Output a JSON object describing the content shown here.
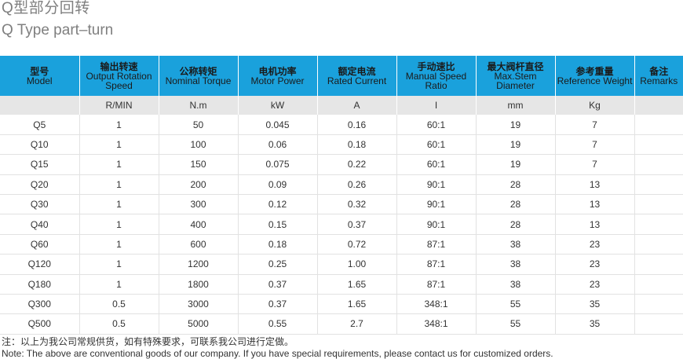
{
  "title_cn": "Q型部分回转",
  "title_en": "Q Type part–turn",
  "columns": [
    {
      "cn": "型号",
      "en": "Model",
      "unit": ""
    },
    {
      "cn": "输出转速",
      "en": "Output Rotation Speed",
      "unit": "R/MIN"
    },
    {
      "cn": "公称转矩",
      "en": "Nominal Torque",
      "unit": "N.m"
    },
    {
      "cn": "电机功率",
      "en": "Motor Power",
      "unit": "kW"
    },
    {
      "cn": "额定电流",
      "en": "Rated Current",
      "unit": "A"
    },
    {
      "cn": "手动速比",
      "en": "Manual Speed Ratio",
      "unit": "I"
    },
    {
      "cn": "最大阀杆直径",
      "en": "Max.Stem Diameter",
      "unit": "mm"
    },
    {
      "cn": "参考重量",
      "en": "Reference Weight",
      "unit": "Kg"
    },
    {
      "cn": "备注",
      "en": "Remarks",
      "unit": ""
    }
  ],
  "rows": [
    [
      "Q5",
      "1",
      "50",
      "0.045",
      "0.16",
      "60:1",
      "19",
      "7",
      ""
    ],
    [
      "Q10",
      "1",
      "100",
      "0.06",
      "0.18",
      "60:1",
      "19",
      "7",
      ""
    ],
    [
      "Q15",
      "1",
      "150",
      "0.075",
      "0.22",
      "60:1",
      "19",
      "7",
      ""
    ],
    [
      "Q20",
      "1",
      "200",
      "0.09",
      "0.26",
      "90:1",
      "28",
      "13",
      ""
    ],
    [
      "Q30",
      "1",
      "300",
      "0.12",
      "0.32",
      "90:1",
      "28",
      "13",
      ""
    ],
    [
      "Q40",
      "1",
      "400",
      "0.15",
      "0.37",
      "90:1",
      "28",
      "13",
      ""
    ],
    [
      "Q60",
      "1",
      "600",
      "0.18",
      "0.72",
      "87:1",
      "38",
      "23",
      ""
    ],
    [
      "Q120",
      "1",
      "1200",
      "0.25",
      "1.00",
      "87:1",
      "38",
      "23",
      ""
    ],
    [
      "Q180",
      "1",
      "1800",
      "0.37",
      "1.65",
      "87:1",
      "38",
      "23",
      ""
    ],
    [
      "Q300",
      "0.5",
      "3000",
      "0.37",
      "1.65",
      "348:1",
      "55",
      "35",
      ""
    ],
    [
      "Q500",
      "0.5",
      "5000",
      "0.55",
      "2.7",
      "348:1",
      "55",
      "35",
      ""
    ]
  ],
  "note_cn": "注：以上为我公司常规供货，如有特殊要求，可联系我公司进行定做。",
  "note_en": "Note: The above are conventional goods of our company. If you have special requirements, please contact us for customized orders.",
  "colors": {
    "header_bg": "#1aa1dc",
    "units_bg": "#e6e6e6",
    "title": "#7f7f7f"
  }
}
